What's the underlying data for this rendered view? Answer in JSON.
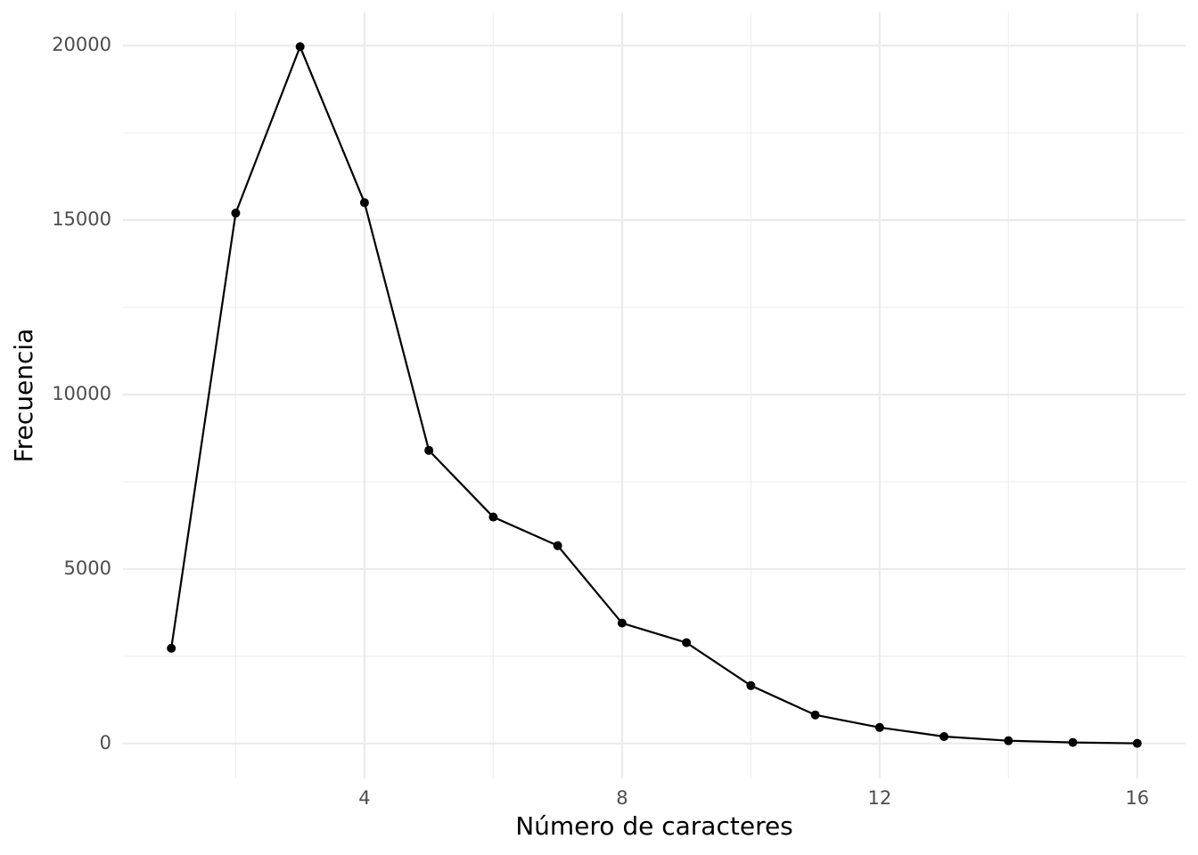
{
  "chart_data": {
    "type": "line",
    "xlabel": "Número de caracteres",
    "ylabel": "Frecuencia",
    "x": [
      1,
      2,
      3,
      4,
      5,
      6,
      7,
      8,
      9,
      10,
      11,
      12,
      13,
      14,
      15,
      16
    ],
    "series": [
      {
        "color": "#000000",
        "values": [
          2730,
          15200,
          19970,
          15500,
          8400,
          6490,
          5670,
          3450,
          2890,
          1660,
          820,
          460,
          200,
          80,
          30,
          5
        ]
      }
    ],
    "xlim": [
      0.25,
      16.75
    ],
    "ylim": [
      -1000,
      20950
    ],
    "xticks": [
      4,
      8,
      12,
      16
    ],
    "yticks": [
      0,
      5000,
      10000,
      15000,
      20000
    ],
    "x_minor_grid": [
      2,
      6,
      10,
      14
    ],
    "y_minor_grid": [
      2500,
      7500,
      12500,
      17500
    ],
    "grid": true
  }
}
